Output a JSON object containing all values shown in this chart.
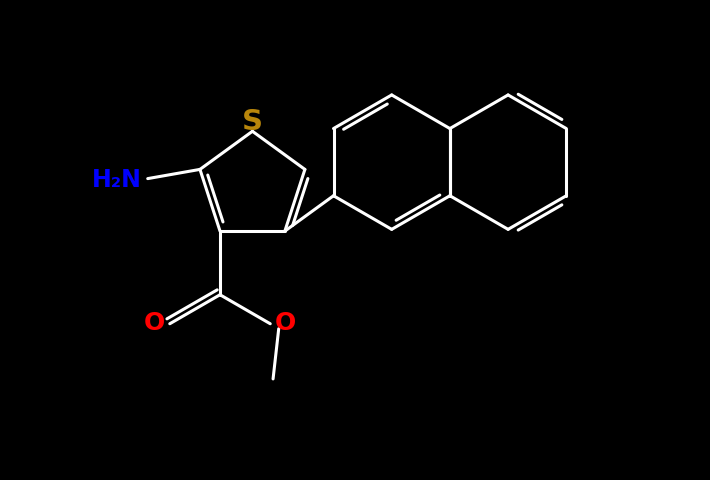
{
  "bg_color": "#000000",
  "S_color": "#b8860b",
  "N_color": "#0000ff",
  "O_color": "#ff0000",
  "bond_color": "#ffffff",
  "bond_lw": 2.2,
  "font_size_atom": 18,
  "fig_bg": "#000000",
  "xlim": [
    0,
    10
  ],
  "ylim": [
    0,
    6.8
  ]
}
